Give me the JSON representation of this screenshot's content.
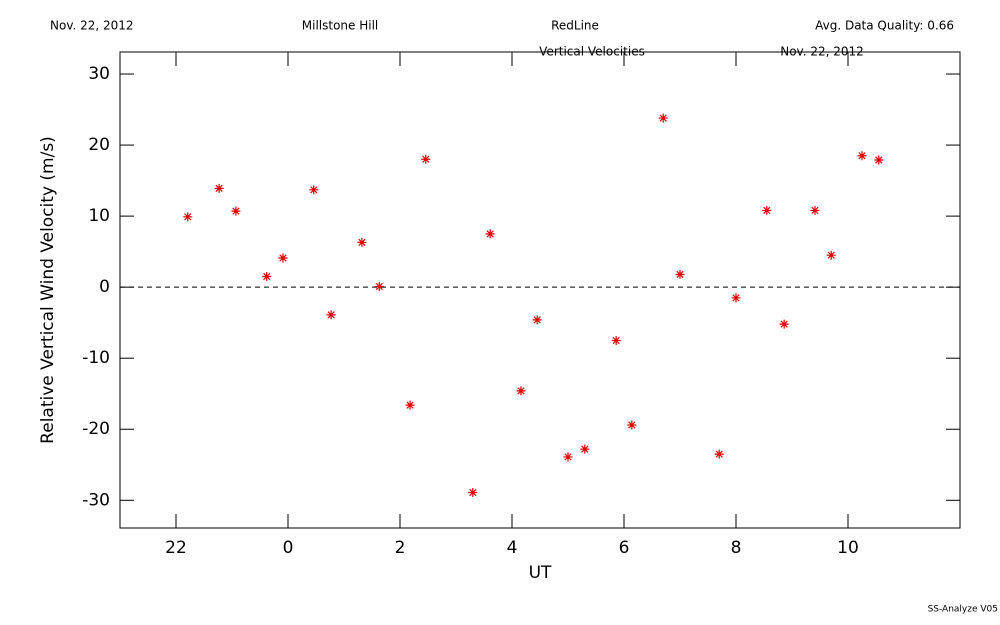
{
  "chart_data": {
    "type": "scatter",
    "header": {
      "date": "Nov. 22, 2012",
      "site": "Millstone Hill",
      "line": "RedLine",
      "quality": "Avg. Data Quality: 0.66"
    },
    "title": "Vertical Velocities",
    "plot_date": "Nov. 22, 2012",
    "footer": "SS-Analyze V05",
    "xlabel": "UT",
    "ylabel": "Relative Vertical Wind Velocity (m/s)",
    "xlim": [
      -3,
      12
    ],
    "ylim": [
      -33.9,
      33.1
    ],
    "xticks": [
      {
        "value": -2,
        "label": "22"
      },
      0,
      2,
      4,
      6,
      8,
      10
    ],
    "yticks": [
      -30,
      -20,
      -10,
      0,
      10,
      20,
      30
    ],
    "reference_line": 0,
    "color": "#e00000",
    "x": [
      -1.79,
      -1.23,
      -0.93,
      -0.38,
      -0.09,
      0.46,
      0.77,
      1.32,
      1.63,
      2.18,
      2.46,
      3.3,
      3.61,
      4.16,
      4.45,
      5.0,
      5.3,
      5.86,
      6.14,
      6.7,
      7.0,
      7.7,
      8.0,
      8.55,
      8.86,
      9.41,
      9.7,
      10.25,
      10.55
    ],
    "values": [
      9.9,
      13.9,
      10.7,
      1.5,
      4.1,
      13.7,
      -3.9,
      6.3,
      0.1,
      -16.6,
      18.0,
      -28.9,
      7.5,
      -14.6,
      -4.6,
      -23.9,
      -22.8,
      -7.5,
      -19.4,
      23.8,
      1.8,
      -23.5,
      -1.5,
      10.8,
      -5.2,
      10.8,
      4.5,
      18.5,
      17.9
    ]
  }
}
